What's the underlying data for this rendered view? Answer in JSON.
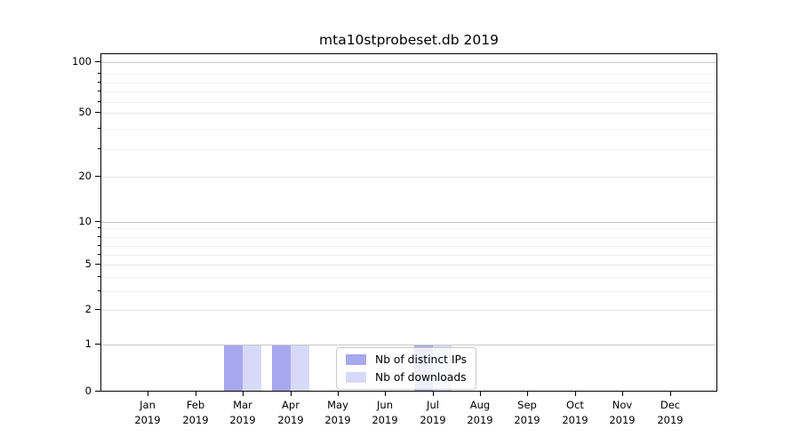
{
  "window": {
    "title": "mta10stprobeset.db 2019"
  },
  "chart_data": {
    "type": "bar",
    "title": "mta10stprobeset.db 2019",
    "categories": [
      "Jan 2019",
      "Feb 2019",
      "Mar 2019",
      "Apr 2019",
      "May 2019",
      "Jun 2019",
      "Jul 2019",
      "Aug 2019",
      "Sep 2019",
      "Oct 2019",
      "Nov 2019",
      "Dec 2019"
    ],
    "series": [
      {
        "name": "Nb of distinct IPs",
        "color": "#a8a8f0",
        "values": [
          0,
          0,
          1,
          1,
          0,
          0,
          1,
          0,
          0,
          0,
          0,
          0
        ]
      },
      {
        "name": "Nb of downloads",
        "color": "#d8d8f8",
        "values": [
          0,
          0,
          1,
          1,
          0,
          0,
          1,
          0,
          0,
          0,
          0,
          0
        ]
      }
    ],
    "xlabel": "",
    "ylabel": "",
    "yscale": "symlog",
    "yticks": [
      0,
      1,
      2,
      5,
      10,
      20,
      50,
      100
    ],
    "ylim": [
      0,
      115
    ],
    "grid": "horizontal major+minor",
    "legend_position": "inside-bottom-center"
  }
}
